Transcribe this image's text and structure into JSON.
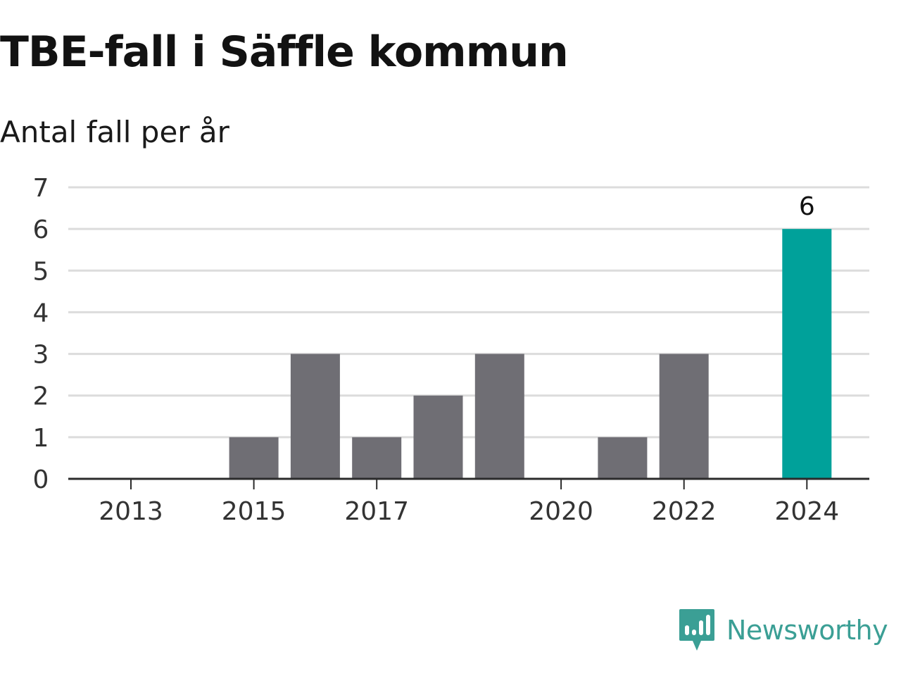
{
  "header": {
    "title": "TBE-fall i Säffle kommun",
    "subtitle": "Antal fall per år"
  },
  "chart_data": {
    "type": "bar",
    "categories": [
      "2013",
      "2014",
      "2015",
      "2016",
      "2017",
      "2018",
      "2019",
      "2020",
      "2021",
      "2022",
      "2023",
      "2024"
    ],
    "values": [
      0,
      0,
      1,
      3,
      1,
      2,
      3,
      0,
      1,
      3,
      0,
      6
    ],
    "x_tick_labels": [
      "2013",
      "2015",
      "2017",
      "2020",
      "2022",
      "2024"
    ],
    "y_ticks": [
      0,
      1,
      2,
      3,
      4,
      5,
      6,
      7
    ],
    "ylim": [
      0,
      7
    ],
    "grid": true,
    "highlight_category": "2024",
    "data_labels": [
      {
        "category": "2024",
        "text": "6"
      }
    ],
    "colors": {
      "bar": "#6f6e74",
      "highlight": "#00a19a",
      "grid": "#dcdcdc",
      "axis": "#2b2b2b",
      "tick_text": "#333333",
      "label_text": "#111111"
    }
  },
  "brand": {
    "name": "Newsworthy",
    "icon": "newsworthy-logo-icon",
    "color": "#3b9f95"
  }
}
